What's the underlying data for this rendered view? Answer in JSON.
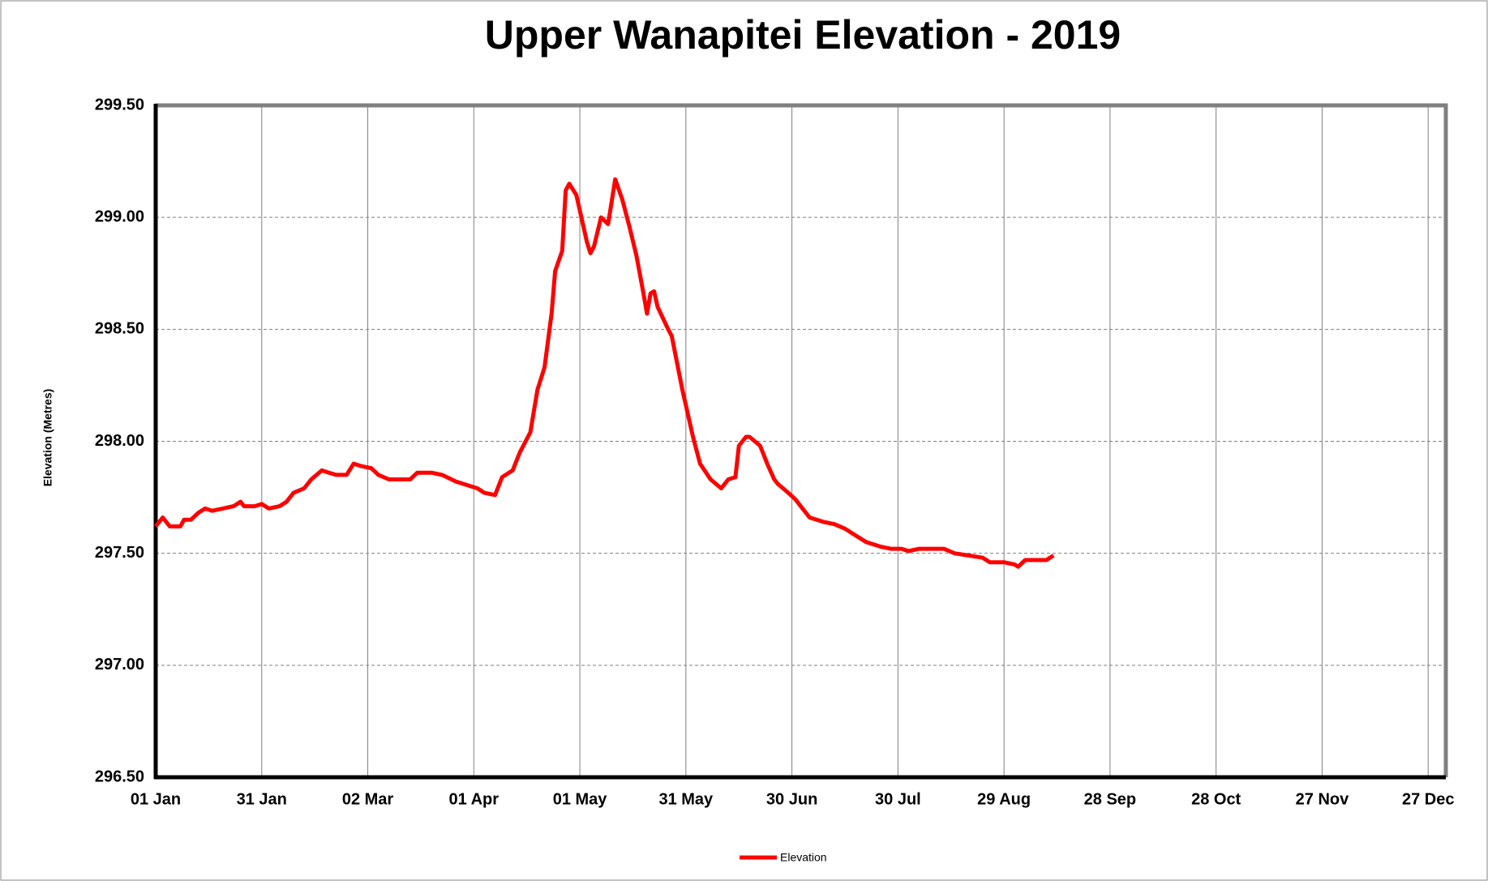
{
  "chart_data": {
    "type": "line",
    "title": "Upper Wanapitei Elevation - 2019",
    "ylabel": "Elevation (Metres)",
    "x": [
      0,
      2,
      4,
      7,
      8,
      10,
      12,
      14,
      16,
      19,
      22,
      24,
      25,
      28,
      30,
      32,
      35,
      37,
      39,
      42,
      44,
      47,
      49,
      51,
      54,
      56,
      58,
      61,
      63,
      66,
      69,
      72,
      74,
      78,
      81,
      85,
      89,
      91,
      93,
      96,
      98,
      101,
      103,
      106,
      108,
      110,
      112,
      113,
      115,
      116,
      117,
      119,
      120,
      122,
      123,
      124,
      126,
      128,
      130,
      132,
      134,
      136,
      138,
      139,
      140,
      141,
      142,
      145,
      146,
      149,
      152,
      154,
      157,
      160,
      162,
      164,
      165,
      167,
      168,
      171,
      173,
      175,
      176,
      179,
      181,
      183,
      185,
      189,
      192,
      195,
      198,
      201,
      205,
      208,
      211,
      213,
      216,
      219,
      223,
      226,
      230,
      234,
      236,
      240,
      243,
      244,
      246,
      250,
      252,
      254
    ],
    "series": [
      {
        "name": "Elevation",
        "color": "#ff0000",
        "values": [
          297.62,
          297.66,
          297.62,
          297.62,
          297.65,
          297.65,
          297.68,
          297.7,
          297.69,
          297.7,
          297.71,
          297.73,
          297.71,
          297.71,
          297.72,
          297.7,
          297.71,
          297.73,
          297.77,
          297.79,
          297.83,
          297.87,
          297.86,
          297.85,
          297.85,
          297.9,
          297.89,
          297.88,
          297.85,
          297.83,
          297.83,
          297.83,
          297.86,
          297.86,
          297.85,
          297.82,
          297.8,
          297.79,
          297.77,
          297.76,
          297.84,
          297.87,
          297.95,
          298.04,
          298.23,
          298.33,
          298.57,
          298.76,
          298.85,
          299.12,
          299.15,
          299.1,
          299.03,
          298.89,
          298.84,
          298.87,
          299.0,
          298.97,
          299.17,
          299.08,
          298.96,
          298.83,
          298.66,
          298.57,
          298.66,
          298.67,
          298.6,
          298.5,
          298.47,
          298.23,
          298.02,
          297.9,
          297.83,
          297.79,
          297.83,
          297.84,
          297.98,
          298.02,
          298.02,
          297.98,
          297.9,
          297.83,
          297.81,
          297.77,
          297.74,
          297.7,
          297.66,
          297.64,
          297.63,
          297.61,
          297.58,
          297.55,
          297.53,
          297.52,
          297.52,
          297.51,
          297.52,
          297.52,
          297.52,
          297.5,
          297.49,
          297.48,
          297.46,
          297.46,
          297.45,
          297.44,
          297.47,
          297.47,
          297.47,
          297.49
        ]
      }
    ],
    "xlim": [
      0,
      365
    ],
    "xticks": [
      {
        "value": 0,
        "label": "01 Jan"
      },
      {
        "value": 30,
        "label": "31 Jan"
      },
      {
        "value": 60,
        "label": "02 Mar"
      },
      {
        "value": 90,
        "label": "01 Apr"
      },
      {
        "value": 120,
        "label": "01 May"
      },
      {
        "value": 150,
        "label": "31 May"
      },
      {
        "value": 180,
        "label": "30 Jun"
      },
      {
        "value": 210,
        "label": "30 Jul"
      },
      {
        "value": 240,
        "label": "29 Aug"
      },
      {
        "value": 270,
        "label": "28 Sep"
      },
      {
        "value": 300,
        "label": "28 Oct"
      },
      {
        "value": 330,
        "label": "27 Nov"
      },
      {
        "value": 360,
        "label": "27 Dec"
      }
    ],
    "ylim": [
      296.5,
      299.5
    ],
    "yticks": [
      {
        "value": 296.5,
        "label": "296.50"
      },
      {
        "value": 297,
        "label": "297.00"
      },
      {
        "value": 297.5,
        "label": "297.50"
      },
      {
        "value": 298,
        "label": "298.00"
      },
      {
        "value": 298.5,
        "label": "298.50"
      },
      {
        "value": 299,
        "label": "299.00"
      },
      {
        "value": 299.5,
        "label": "299.50"
      }
    ],
    "grid": true,
    "legend": "bottom"
  }
}
